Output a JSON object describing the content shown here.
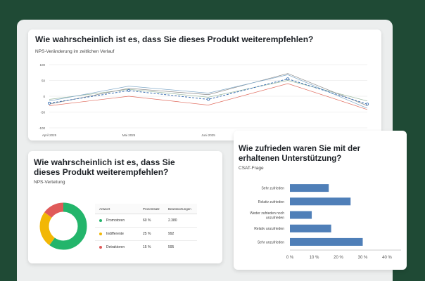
{
  "colors": {
    "promoter": "#23b56b",
    "passive": "#f2b705",
    "detractor": "#e05a59",
    "bar": "#4f7fb8"
  },
  "top_card": {
    "title": "Wie wahrscheinlich ist es, dass Sie dieses Produkt weiterempfehlen?",
    "subtitle": "NPS-Veränderung im zeitlichen Verlauf"
  },
  "nps_card": {
    "title_line1": "Wie wahrscheinlich ist es, dass Sie",
    "title_line2": "dieses Produkt weiterempfehlen?",
    "subtitle": "NPS-Verteilung",
    "table": {
      "headers": [
        "Antwort",
        "Prozentsatz",
        "Beantwortungen"
      ],
      "rows": [
        {
          "label": "Promotoren",
          "percent": "60 %",
          "count": "2.380"
        },
        {
          "label": "Indifferente",
          "percent": "25 %",
          "count": "992"
        },
        {
          "label": "Detraktoren",
          "percent": "15 %",
          "count": "595"
        }
      ]
    }
  },
  "csat_card": {
    "title_line1": "Wie zufrieden waren Sie mit der",
    "title_line2": "erhaltenen Unterstützung?",
    "subtitle": "CSAT-Frage"
  },
  "chart_data": [
    {
      "type": "line",
      "x": [
        "April 2025",
        "Mai 2025",
        "Juni 2025",
        "",
        ""
      ],
      "ylim": [
        -100,
        100
      ],
      "yticks": [
        "100",
        "50",
        "0",
        "-50",
        "-100"
      ],
      "series": [
        {
          "values": [
            -22,
            18,
            -10,
            55,
            -25
          ],
          "style": "dashed-marker",
          "color": "#3a6fb0"
        },
        {
          "values": [
            -15,
            32,
            10,
            68,
            -38
          ],
          "color": "#7fa8c8"
        },
        {
          "values": [
            -25,
            25,
            5,
            72,
            -30
          ],
          "color": "#8a8a8a"
        },
        {
          "values": [
            -30,
            0,
            -28,
            40,
            -42
          ],
          "color": "#e06b5d"
        },
        {
          "values": [
            -10,
            22,
            -3,
            50,
            -15
          ],
          "color": "#9bb9a0"
        }
      ]
    },
    {
      "type": "pie",
      "labels": [
        "Promotoren",
        "Indifferente",
        "Detraktoren"
      ],
      "values": [
        60,
        25,
        15
      ],
      "donut": true
    },
    {
      "type": "bar",
      "orientation": "horizontal",
      "categories": [
        "Sehr zufrieden",
        "Relativ zufrieden",
        "Weder zufrieden noch unzufrieden",
        "Relativ unzufrieden",
        "Sehr unzufrieden"
      ],
      "values": [
        16,
        25,
        9,
        17,
        30
      ],
      "xlim": [
        0,
        40
      ],
      "xticks": [
        "0 %",
        "10 %",
        "20 %",
        "30 %",
        "40 %"
      ]
    }
  ]
}
